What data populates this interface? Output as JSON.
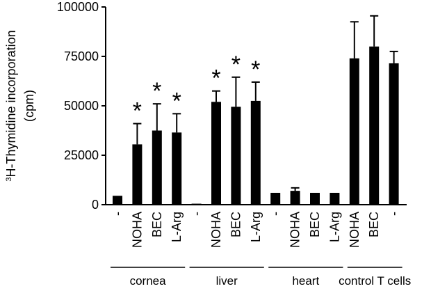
{
  "chart_data": {
    "type": "bar",
    "title": "",
    "ylabel_sup": "3",
    "ylabel_line1": "H-Thymidine incorporation",
    "ylabel_line2": "(cpm)",
    "ylim": [
      0,
      100000
    ],
    "yticks": [
      0,
      25000,
      50000,
      75000,
      100000
    ],
    "ytick_labels": [
      "0",
      "25000",
      "50000",
      "75000",
      "100000"
    ],
    "grid": false,
    "legend": "none",
    "bar_color": "#000000",
    "categories": [
      "-",
      "NOHA",
      "BEC",
      "L-Arg",
      "-",
      "NOHA",
      "BEC",
      "L-Arg",
      "-",
      "NOHA",
      "BEC",
      "L-Arg",
      "NOHA",
      "BEC",
      "-"
    ],
    "values": [
      4500,
      30500,
      37500,
      36500,
      500,
      52000,
      49500,
      52500,
      6000,
      7000,
      6000,
      6000,
      74000,
      80000,
      71500
    ],
    "errors": [
      0,
      10500,
      13500,
      9500,
      0,
      5500,
      15000,
      9500,
      0,
      1500,
      0,
      0,
      18500,
      15500,
      6000
    ],
    "significant": [
      false,
      true,
      true,
      true,
      false,
      true,
      true,
      true,
      false,
      false,
      false,
      false,
      false,
      false,
      false
    ],
    "significance_marker": "*",
    "groups": [
      {
        "label": "cornea",
        "start": 0,
        "end": 3
      },
      {
        "label": "liver",
        "start": 4,
        "end": 7
      },
      {
        "label": "heart",
        "start": 8,
        "end": 11
      },
      {
        "label": "control T cells",
        "start": 12,
        "end": 14
      }
    ]
  }
}
